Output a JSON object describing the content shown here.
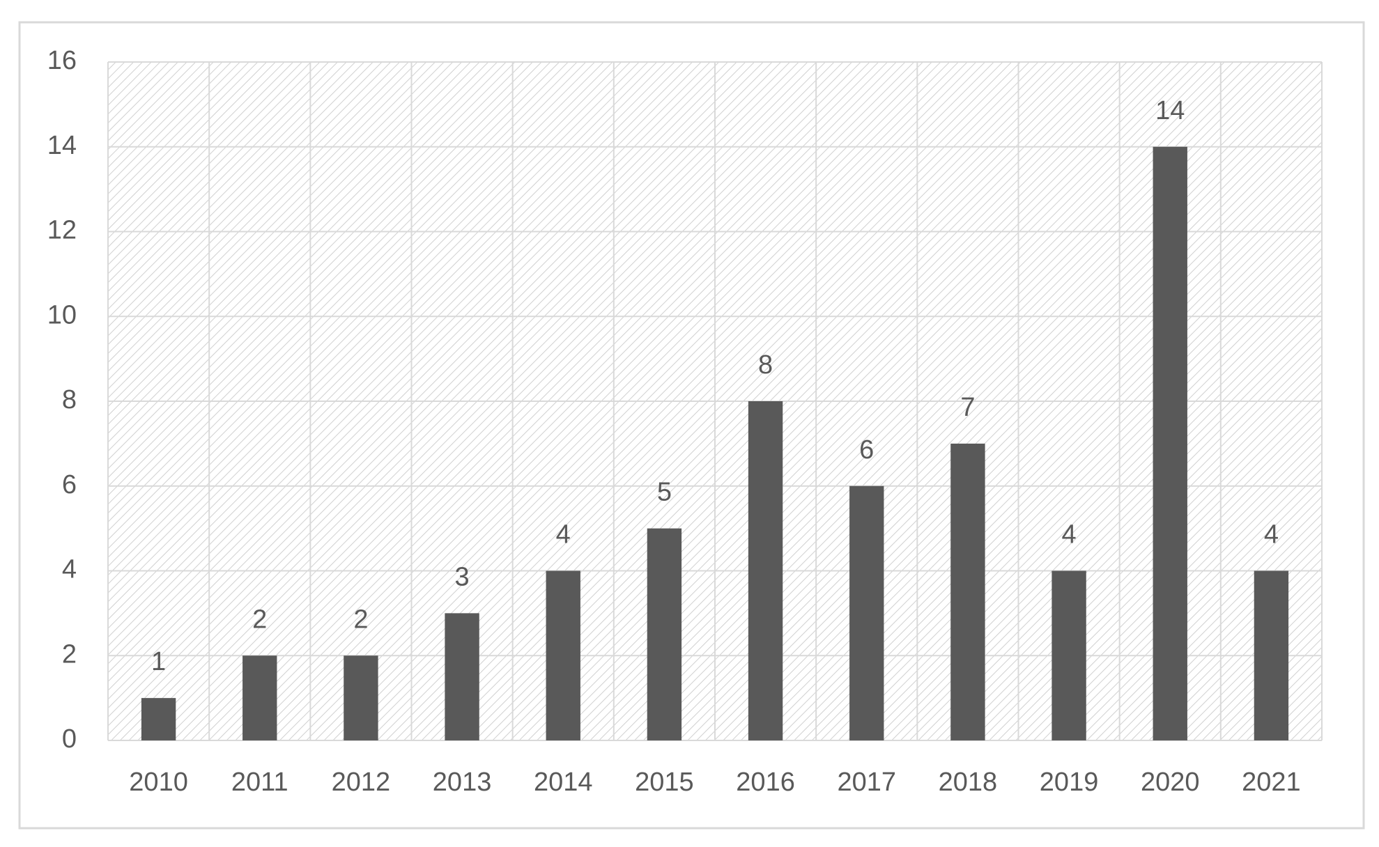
{
  "chart_data": {
    "type": "bar",
    "categories": [
      "2010",
      "2011",
      "2012",
      "2013",
      "2014",
      "2015",
      "2016",
      "2017",
      "2018",
      "2019",
      "2020",
      "2021"
    ],
    "values": [
      1,
      2,
      2,
      3,
      4,
      5,
      8,
      6,
      7,
      4,
      14,
      4
    ],
    "color": "#595959",
    "ylim": [
      0,
      16
    ],
    "yticks": [
      0,
      2,
      4,
      6,
      8,
      10,
      12,
      14,
      16
    ],
    "grid": true
  }
}
